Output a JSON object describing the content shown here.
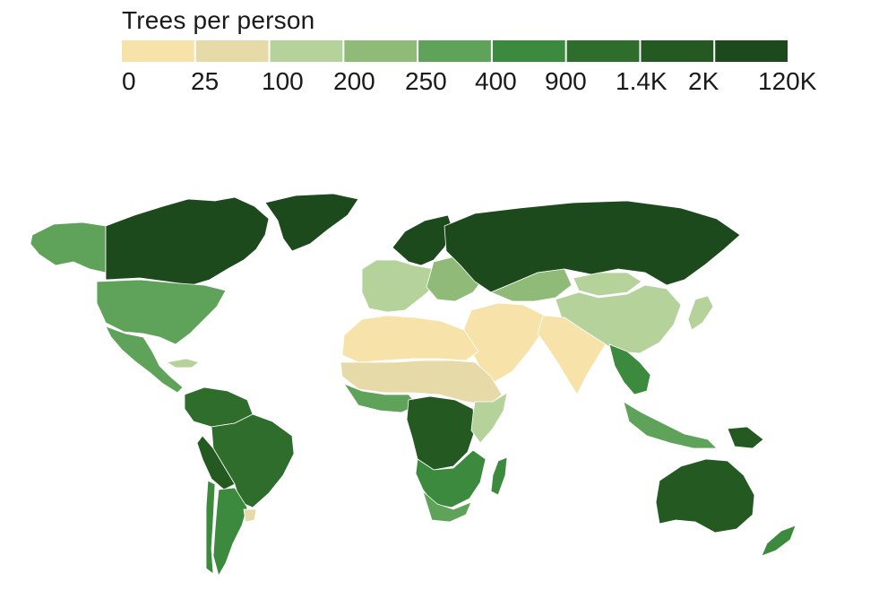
{
  "legend": {
    "title": "Trees per person",
    "bins": [
      {
        "label": "0",
        "color": "#f7e3a9"
      },
      {
        "label": "25",
        "color": "#e6dba8"
      },
      {
        "label": "100",
        "color": "#b5d29b"
      },
      {
        "label": "200",
        "color": "#8fba78"
      },
      {
        "label": "250",
        "color": "#5fa35a"
      },
      {
        "label": "400",
        "color": "#3c8a3e"
      },
      {
        "label": "900",
        "color": "#2e6d2c"
      },
      {
        "label": "1.4K",
        "color": "#245a22"
      },
      {
        "label": "2K",
        "color": "#1d4a1c"
      }
    ],
    "max_label": "120K"
  },
  "regions": [
    {
      "name": "alaska",
      "class": "200-250"
    },
    {
      "name": "canada",
      "class": "2K-120K"
    },
    {
      "name": "greenland",
      "class": "2K-120K"
    },
    {
      "name": "usa",
      "class": "250-400"
    },
    {
      "name": "mexico-central-america",
      "class": "250-400"
    },
    {
      "name": "caribbean",
      "class": "100-200"
    },
    {
      "name": "northern-south-america",
      "class": "900-1.4K"
    },
    {
      "name": "brazil",
      "class": "900-1.4K"
    },
    {
      "name": "bolivia-paraguay",
      "class": "1.4K-2K"
    },
    {
      "name": "argentina",
      "class": "400-900"
    },
    {
      "name": "uruguay",
      "class": "25-100"
    },
    {
      "name": "chile",
      "class": "400-900"
    },
    {
      "name": "scandinavia",
      "class": "2K-120K"
    },
    {
      "name": "western-europe",
      "class": "100-200"
    },
    {
      "name": "eastern-europe",
      "class": "200-250"
    },
    {
      "name": "russia",
      "class": "2K-120K"
    },
    {
      "name": "kazakhstan",
      "class": "200-250"
    },
    {
      "name": "mongolia",
      "class": "100-200"
    },
    {
      "name": "china",
      "class": "100-200"
    },
    {
      "name": "middle-east",
      "class": "0-25"
    },
    {
      "name": "south-asia",
      "class": "0-25"
    },
    {
      "name": "southeast-asia",
      "class": "400-900"
    },
    {
      "name": "indonesia",
      "class": "250-400"
    },
    {
      "name": "papua",
      "class": "1.4K-2K"
    },
    {
      "name": "japan",
      "class": "100-200"
    },
    {
      "name": "north-africa",
      "class": "0-25"
    },
    {
      "name": "sahel",
      "class": "25-100"
    },
    {
      "name": "west-africa",
      "class": "250-400"
    },
    {
      "name": "central-africa",
      "class": "1.4K-2K"
    },
    {
      "name": "east-africa",
      "class": "100-200"
    },
    {
      "name": "southern-africa",
      "class": "400-900"
    },
    {
      "name": "south-africa",
      "class": "200-250"
    },
    {
      "name": "madagascar",
      "class": "400-900"
    },
    {
      "name": "australia",
      "class": "1.4K-2K"
    },
    {
      "name": "new-zealand",
      "class": "400-900"
    }
  ]
}
